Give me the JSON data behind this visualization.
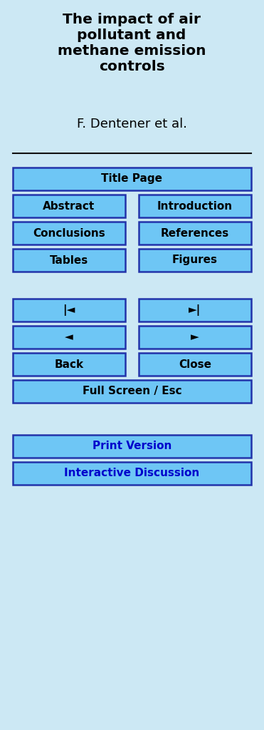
{
  "background_color": "#cce8f4",
  "title_text": "The impact of air\npollutant and\nmethane emission\ncontrols",
  "author_text": "F. Dentener et al.",
  "title_color": "#000000",
  "author_color": "#000000",
  "title_fontsize": 14.5,
  "author_fontsize": 13,
  "button_bg": "#6ec6f5",
  "button_border": "#2233aa",
  "button_text_color": "#000000",
  "button_text_fontsize": 11,
  "fig_width": 3.71,
  "fig_height": 10.24,
  "buttons_full": [
    {
      "label": "Title Page",
      "text_color": "#000000"
    },
    {
      "label": "Full Screen / Esc",
      "text_color": "#000000"
    },
    {
      "label": "Print Version",
      "text_color": "#0000cc"
    },
    {
      "label": "Interactive Discussion",
      "text_color": "#0000cc"
    }
  ],
  "buttons_half": [
    [
      {
        "label": "Abstract",
        "text_color": "#000000"
      },
      {
        "label": "Introduction",
        "text_color": "#000000"
      }
    ],
    [
      {
        "label": "Conclusions",
        "text_color": "#000000"
      },
      {
        "label": "References",
        "text_color": "#000000"
      }
    ],
    [
      {
        "label": "Tables",
        "text_color": "#000000"
      },
      {
        "label": "Figures",
        "text_color": "#000000"
      }
    ],
    [
      {
        "label": "|◄",
        "text_color": "#000000"
      },
      {
        "label": "►|",
        "text_color": "#000000"
      }
    ],
    [
      {
        "label": "◄",
        "text_color": "#000000"
      },
      {
        "label": "►",
        "text_color": "#000000"
      }
    ],
    [
      {
        "label": "Back",
        "text_color": "#000000"
      },
      {
        "label": "Close",
        "text_color": "#000000"
      }
    ]
  ]
}
